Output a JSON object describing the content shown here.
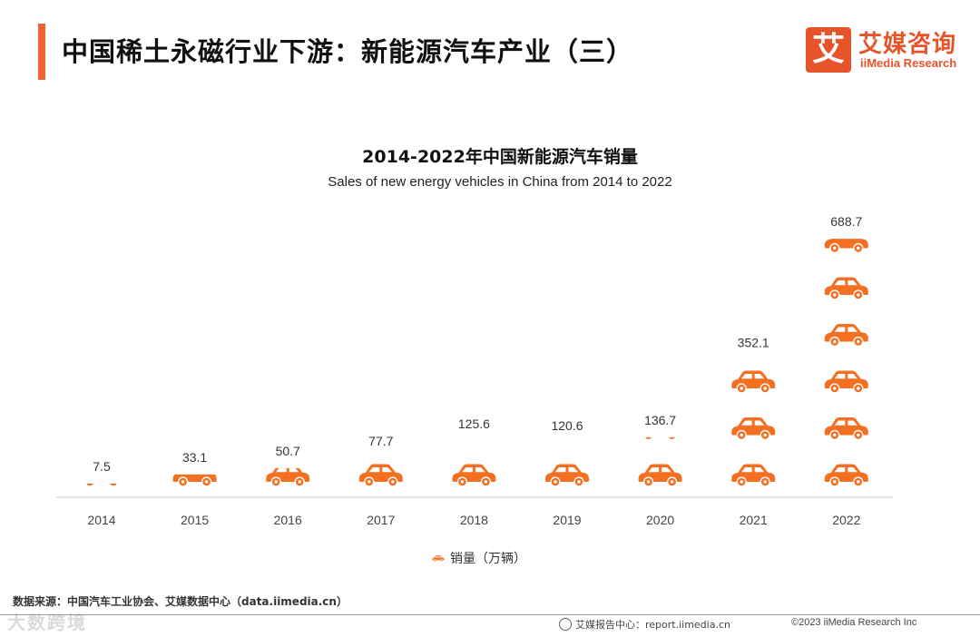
{
  "header": {
    "title": "中国稀土永磁行业下游：新能源汽车产业（三）",
    "accent_color": "#f0622d"
  },
  "logo": {
    "mark_char": "艾",
    "name_cn": "艾媒咨询",
    "name_en": "iiMedia Research",
    "color": "#e8542a"
  },
  "chart_data": {
    "type": "bar",
    "title": "2014-2022年中国新能源汽车销量",
    "subtitle": "Sales of new energy vehicles in China from 2014 to 2022",
    "categories": [
      "2014",
      "2015",
      "2016",
      "2017",
      "2018",
      "2019",
      "2020",
      "2021",
      "2022"
    ],
    "values": [
      7.5,
      33.1,
      50.7,
      77.7,
      125.6,
      120.6,
      136.7,
      352.1,
      688.7
    ],
    "value_labels": [
      "7.5",
      "33.1",
      "50.7",
      "77.7",
      "125.6",
      "120.6",
      "136.7",
      "352.1",
      "688.7"
    ],
    "units_per_icon": 130,
    "series_name": "销量（万辆）",
    "bar_style": "pictogram-car",
    "color": "#f36f21",
    "xlabel": "",
    "ylabel": "",
    "ylim": [
      0,
      700
    ],
    "grid": false,
    "legend_position": "bottom-center"
  },
  "footer": {
    "source": "数据来源：中国汽车工业协会、艾媒数据中心（data.iimedia.cn）",
    "report": "艾媒报告中心：report.iimedia.cn",
    "copyright": "©2023  iiMedia Research  Inc",
    "watermark": "大数跨境"
  }
}
